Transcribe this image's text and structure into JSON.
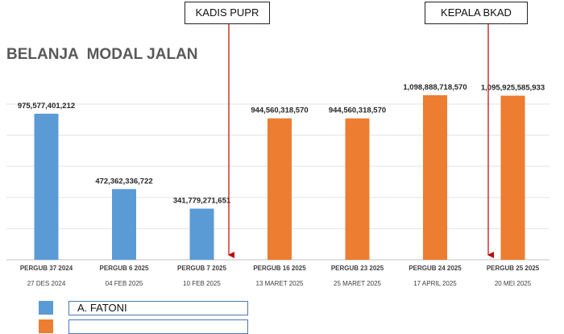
{
  "chart_data": {
    "type": "bar",
    "title": "BELANJA  MODAL JALAN",
    "categories": [
      "PERGUB 37 2024",
      "PERGUB 6 2025",
      "PERGUB 7 2025",
      "PERGUB 16 2025",
      "PERGUB 23 2025",
      "PERGUB 24 2025",
      "PERGUB 25 2025"
    ],
    "dates": [
      "27 DES 2024",
      "04 FEB 2025",
      "10 FEB 2025",
      "13 MARET 2025",
      "25 MARET 2025",
      "17 APRIL 2025",
      "20 MEI 2025"
    ],
    "values": [
      975577401212,
      472362336722,
      341779271651,
      944560318570,
      944560318570,
      1098888718570,
      1095925585933
    ],
    "value_labels": [
      "975,577,401,212",
      "472,362,336,722",
      "341,779,271,651",
      "944,560,318,570",
      "944,560,318,570",
      "1,098,888,718,570",
      "1,095,925,585,933"
    ],
    "bar_groups": [
      "A. FATONI",
      "A. FATONI",
      "A. FATONI",
      "",
      "",
      "",
      ""
    ],
    "ylim": [
      0,
      1250000000000
    ],
    "grid": true,
    "legend_placement": "bottom-left",
    "colors": {
      "A. FATONI": "#5b9bd5",
      "other": "#ed7d31"
    },
    "xlabel": "",
    "ylabel": ""
  },
  "annotations": [
    {
      "label": "KADIS PUPR",
      "after_category": "PERGUB 7 2025"
    },
    {
      "label": "KEPALA BKAD",
      "after_category": "PERGUB 25 2025"
    }
  ],
  "legend": [
    {
      "label": "A. FATONI",
      "color": "#5b9bd5"
    },
    {
      "label": "",
      "color": "#ed7d31"
    }
  ]
}
